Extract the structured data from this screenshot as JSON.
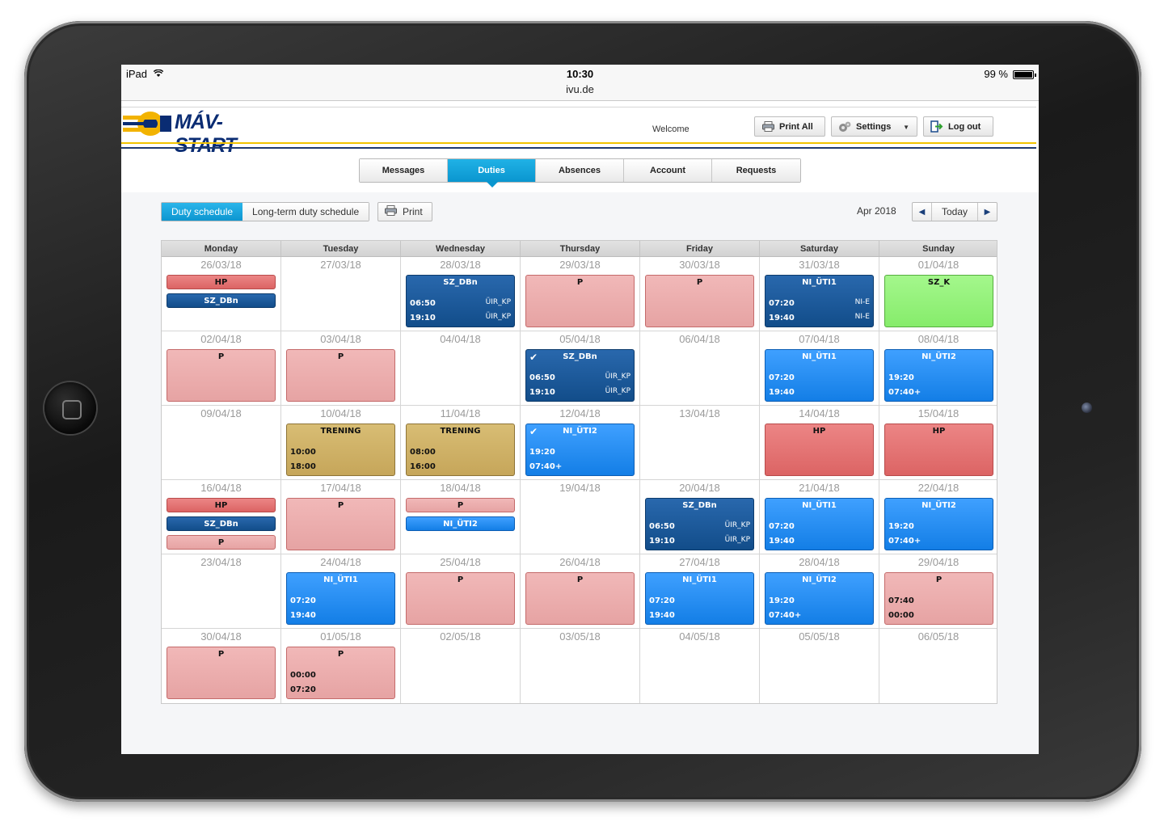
{
  "status_bar": {
    "device": "iPad",
    "time": "10:30",
    "url": "ivu.de",
    "battery": "99 %"
  },
  "header": {
    "logo_text": "MÁV-START",
    "welcome": "Welcome",
    "print_all": "Print All",
    "settings": "Settings",
    "logout": "Log out"
  },
  "main_tabs": [
    "Messages",
    "Duties",
    "Absences",
    "Account",
    "Requests"
  ],
  "active_tab": "Duties",
  "toolbar": {
    "view_duty": "Duty schedule",
    "view_longterm": "Long-term duty schedule",
    "print": "Print",
    "month": "Apr 2018",
    "today": "Today"
  },
  "colors": {
    "accent": "#0a96cf",
    "pink": "#e6a3a3",
    "red": "#dc6464",
    "navy": "#124d8a",
    "blue": "#137ee6",
    "green": "#86ec6b",
    "gold": "#c6a65a"
  },
  "calendar": {
    "weekdays": [
      "Monday",
      "Tuesday",
      "Wednesday",
      "Thursday",
      "Friday",
      "Saturday",
      "Sunday"
    ],
    "weeks": [
      [
        {
          "date": "26/03/18",
          "duties": [
            {
              "name": "HP",
              "color": "red",
              "size": "small"
            },
            {
              "name": "SZ_DBn",
              "color": "navy",
              "size": "small"
            }
          ]
        },
        {
          "date": "27/03/18",
          "duties": []
        },
        {
          "date": "28/03/18",
          "duties": [
            {
              "name": "SZ_DBn",
              "color": "navy",
              "size": "big",
              "t1": "06:50",
              "t2": "19:10",
              "s1": "ÜIR_KP",
              "s2": "ÜIR_KP"
            }
          ]
        },
        {
          "date": "29/03/18",
          "duties": [
            {
              "name": "P",
              "color": "pink",
              "size": "big"
            }
          ]
        },
        {
          "date": "30/03/18",
          "duties": [
            {
              "name": "P",
              "color": "pink",
              "size": "big"
            }
          ]
        },
        {
          "date": "31/03/18",
          "duties": [
            {
              "name": "NI_ÜTI1",
              "color": "navy",
              "size": "big",
              "t1": "07:20",
              "t2": "19:40",
              "s1": "NI-E",
              "s2": "NI-E"
            }
          ]
        },
        {
          "date": "01/04/18",
          "duties": [
            {
              "name": "SZ_K",
              "color": "green",
              "size": "big"
            }
          ]
        }
      ],
      [
        {
          "date": "02/04/18",
          "duties": [
            {
              "name": "P",
              "color": "pink",
              "size": "big"
            }
          ]
        },
        {
          "date": "03/04/18",
          "duties": [
            {
              "name": "P",
              "color": "pink",
              "size": "big"
            }
          ]
        },
        {
          "date": "04/04/18",
          "duties": []
        },
        {
          "date": "05/04/18",
          "duties": [
            {
              "name": "SZ_DBn",
              "color": "navy",
              "size": "big",
              "t1": "06:50",
              "t2": "19:10",
              "s1": "ÜIR_KP",
              "s2": "ÜIR_KP",
              "checked": true
            }
          ]
        },
        {
          "date": "06/04/18",
          "duties": []
        },
        {
          "date": "07/04/18",
          "duties": [
            {
              "name": "NI_ÜTI1",
              "color": "blue",
              "size": "big",
              "t1": "07:20",
              "t2": "19:40"
            }
          ]
        },
        {
          "date": "08/04/18",
          "duties": [
            {
              "name": "NI_ÜTI2",
              "color": "blue",
              "size": "big",
              "t1": "19:20",
              "t2": "07:40+"
            }
          ]
        }
      ],
      [
        {
          "date": "09/04/18",
          "duties": []
        },
        {
          "date": "10/04/18",
          "duties": [
            {
              "name": "TRENING",
              "color": "gold",
              "size": "big",
              "t1": "10:00",
              "t2": "18:00"
            }
          ]
        },
        {
          "date": "11/04/18",
          "duties": [
            {
              "name": "TRENING",
              "color": "gold",
              "size": "big",
              "t1": "08:00",
              "t2": "16:00"
            }
          ]
        },
        {
          "date": "12/04/18",
          "duties": [
            {
              "name": "NI_ÜTI2",
              "color": "blue",
              "size": "big",
              "t1": "19:20",
              "t2": "07:40+",
              "checked": true
            }
          ]
        },
        {
          "date": "13/04/18",
          "duties": []
        },
        {
          "date": "14/04/18",
          "duties": [
            {
              "name": "HP",
              "color": "red",
              "size": "big"
            }
          ]
        },
        {
          "date": "15/04/18",
          "duties": [
            {
              "name": "HP",
              "color": "red",
              "size": "big"
            }
          ]
        }
      ],
      [
        {
          "date": "16/04/18",
          "duties": [
            {
              "name": "HP",
              "color": "red",
              "size": "small"
            },
            {
              "name": "SZ_DBn",
              "color": "navy",
              "size": "small"
            },
            {
              "name": "P",
              "color": "pink",
              "size": "small"
            }
          ]
        },
        {
          "date": "17/04/18",
          "duties": [
            {
              "name": "P",
              "color": "pink",
              "size": "big"
            }
          ]
        },
        {
          "date": "18/04/18",
          "duties": [
            {
              "name": "P",
              "color": "pink",
              "size": "small"
            },
            {
              "name": "NI_ÜTI2",
              "color": "blue",
              "size": "small"
            }
          ]
        },
        {
          "date": "19/04/18",
          "duties": []
        },
        {
          "date": "20/04/18",
          "duties": [
            {
              "name": "SZ_DBn",
              "color": "navy",
              "size": "big",
              "t1": "06:50",
              "t2": "19:10",
              "s1": "ÜIR_KP",
              "s2": "ÜIR_KP"
            }
          ]
        },
        {
          "date": "21/04/18",
          "duties": [
            {
              "name": "NI_ÜTI1",
              "color": "blue",
              "size": "big",
              "t1": "07:20",
              "t2": "19:40"
            }
          ]
        },
        {
          "date": "22/04/18",
          "duties": [
            {
              "name": "NI_ÜTI2",
              "color": "blue",
              "size": "big",
              "t1": "19:20",
              "t2": "07:40+"
            }
          ]
        }
      ],
      [
        {
          "date": "23/04/18",
          "duties": []
        },
        {
          "date": "24/04/18",
          "duties": [
            {
              "name": "NI_ÜTI1",
              "color": "blue",
              "size": "big",
              "t1": "07:20",
              "t2": "19:40"
            }
          ]
        },
        {
          "date": "25/04/18",
          "duties": [
            {
              "name": "P",
              "color": "pink",
              "size": "big"
            }
          ]
        },
        {
          "date": "26/04/18",
          "duties": [
            {
              "name": "P",
              "color": "pink",
              "size": "big"
            }
          ]
        },
        {
          "date": "27/04/18",
          "duties": [
            {
              "name": "NI_ÜTI1",
              "color": "blue",
              "size": "big",
              "t1": "07:20",
              "t2": "19:40"
            }
          ]
        },
        {
          "date": "28/04/18",
          "duties": [
            {
              "name": "NI_ÜTI2",
              "color": "blue",
              "size": "big",
              "t1": "19:20",
              "t2": "07:40+"
            }
          ]
        },
        {
          "date": "29/04/18",
          "duties": [
            {
              "name": "P",
              "color": "pink",
              "size": "big",
              "t1": "07:40",
              "t2": "00:00"
            }
          ]
        }
      ],
      [
        {
          "date": "30/04/18",
          "duties": [
            {
              "name": "P",
              "color": "pink",
              "size": "big"
            }
          ]
        },
        {
          "date": "01/05/18",
          "duties": [
            {
              "name": "P",
              "color": "pink",
              "size": "big",
              "t1": "00:00",
              "t2": "07:20"
            }
          ]
        },
        {
          "date": "02/05/18",
          "duties": []
        },
        {
          "date": "03/05/18",
          "duties": []
        },
        {
          "date": "04/05/18",
          "duties": []
        },
        {
          "date": "05/05/18",
          "duties": []
        },
        {
          "date": "06/05/18",
          "duties": []
        }
      ]
    ]
  }
}
